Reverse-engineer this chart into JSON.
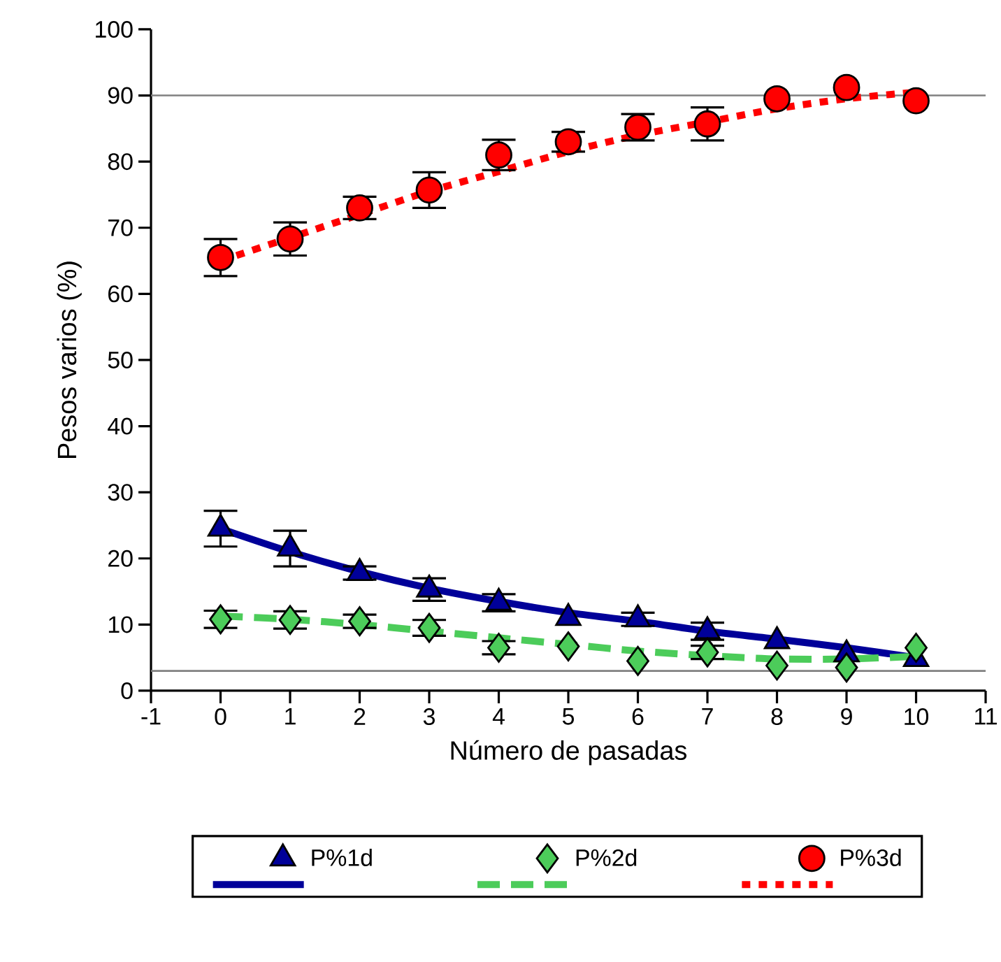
{
  "chart_data": {
    "type": "scatter",
    "xlabel": "Número de pasadas",
    "ylabel": "Pesos varios (%)",
    "xlim": [
      -1,
      11
    ],
    "xticks": [
      -1,
      0,
      1,
      2,
      3,
      4,
      5,
      6,
      7,
      8,
      9,
      10,
      11
    ],
    "ylim": [
      0,
      100
    ],
    "yticks": [
      0,
      10,
      20,
      30,
      40,
      50,
      60,
      70,
      80,
      90,
      100
    ],
    "legend": "bottom",
    "ref_lines": [
      {
        "axis": "y",
        "value": 90,
        "color": "#808080"
      },
      {
        "axis": "y",
        "value": 3,
        "color": "#808080"
      }
    ],
    "series": [
      {
        "type": "line",
        "color": "#000099",
        "line_style": "solid",
        "x": [
          0,
          1,
          2,
          3,
          4,
          5,
          6,
          7,
          8,
          9,
          10
        ],
        "values": [
          24.5,
          21,
          18,
          15.5,
          13.5,
          11.8,
          10.5,
          9,
          7.8,
          6.5,
          5
        ]
      },
      {
        "type": "line",
        "color": "#4ccc5a",
        "line_style": "dashed",
        "x": [
          0,
          1,
          2,
          3,
          4,
          5,
          6,
          7,
          8,
          9,
          10
        ],
        "values": [
          11.3,
          10.8,
          10,
          9,
          8,
          7,
          6,
          5.3,
          4.8,
          4.8,
          5.2
        ]
      },
      {
        "type": "line",
        "color": "#ff0000",
        "line_style": "dotted",
        "x": [
          0,
          1,
          2,
          3,
          4,
          5,
          6,
          7,
          8,
          9,
          10
        ],
        "values": [
          65,
          68.5,
          72,
          75.5,
          78.5,
          81.5,
          84,
          86,
          88,
          89.5,
          90.5
        ]
      },
      {
        "name": "P%1d",
        "marker": "triangle",
        "color": "#000099",
        "x": [
          0,
          1,
          2,
          3,
          4,
          5,
          6,
          7,
          8,
          9,
          10
        ],
        "values": [
          24.5,
          21.5,
          17.8,
          15.3,
          13.3,
          11,
          10.8,
          9,
          7.5,
          5.5,
          4.8
        ],
        "errors": [
          2.7,
          2.7,
          1,
          1.7,
          1.3,
          null,
          1,
          1.3,
          null,
          null,
          null
        ]
      },
      {
        "name": "P%2d",
        "marker": "diamond",
        "color": "#4ccc5a",
        "x": [
          0,
          1,
          2,
          3,
          4,
          5,
          6,
          7,
          8,
          9,
          10
        ],
        "values": [
          10.8,
          10.7,
          10.5,
          9.5,
          6.5,
          6.7,
          4.5,
          5.8,
          3.8,
          3.5,
          6.5
        ],
        "errors": [
          1.3,
          1.3,
          1,
          1.2,
          1,
          null,
          null,
          1,
          null,
          null,
          null
        ]
      },
      {
        "name": "P%3d",
        "marker": "circle",
        "color": "#ff0000",
        "x": [
          0,
          1,
          2,
          3,
          4,
          5,
          6,
          7,
          8,
          9,
          10
        ],
        "values": [
          65.5,
          68.3,
          73,
          75.7,
          81,
          83,
          85.2,
          85.7,
          89.5,
          91.2,
          89.2
        ],
        "errors": [
          2.8,
          2.5,
          1.7,
          2.7,
          2.3,
          1.5,
          2,
          2.5,
          null,
          null,
          null
        ]
      }
    ]
  }
}
